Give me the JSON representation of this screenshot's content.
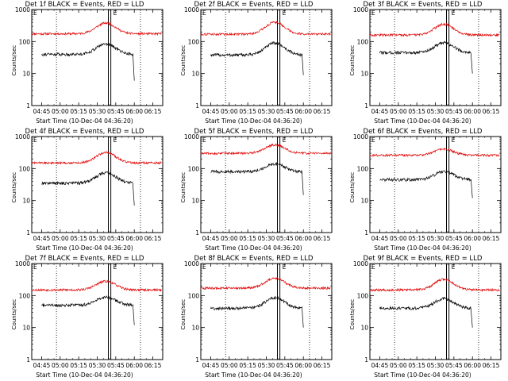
{
  "chart_data": {
    "type": "line",
    "yscale": "log",
    "ylim": [
      1,
      1000
    ],
    "y_ticks": [
      "1",
      "10",
      "100",
      "1000"
    ],
    "x_ticks": [
      "04:45",
      "05:00",
      "05:15",
      "05:30",
      "05:45",
      "06:00",
      "06:15"
    ],
    "x_tick_minutes": [
      0,
      15,
      30,
      45,
      60,
      75,
      90
    ],
    "xlim_minutes": [
      -8,
      98
    ],
    "ylabel": "Counts/sec",
    "xlabel": "Start Time (10-Dec-04 04:36:20)",
    "markers": {
      "dotted_at_min": [
        12,
        80
      ],
      "solid_at_min": [
        54,
        56
      ]
    },
    "flag_label": "E",
    "series_colors": {
      "events": "#000000",
      "lld": "#e00000"
    },
    "panels": [
      {
        "title": "Det 1f BLACK = Events, RED = LLD",
        "red": [
          175,
          380,
          180
        ],
        "black": [
          40,
          85,
          6
        ]
      },
      {
        "title": "Det 2f BLACK = Events, RED = LLD",
        "red": [
          170,
          400,
          170
        ],
        "black": [
          38,
          90,
          9
        ]
      },
      {
        "title": "Det 3f BLACK = Events, RED = LLD",
        "red": [
          160,
          350,
          150
        ],
        "black": [
          45,
          90,
          10
        ]
      },
      {
        "title": "Det 4f BLACK = Events, RED = LLD",
        "red": [
          150,
          320,
          140
        ],
        "black": [
          35,
          75,
          7
        ]
      },
      {
        "title": "Det 5f BLACK = Events, RED = LLD",
        "red": [
          300,
          550,
          280
        ],
        "black": [
          80,
          140,
          15
        ]
      },
      {
        "title": "Det 6f BLACK = Events, RED = LLD",
        "red": [
          260,
          400,
          230
        ],
        "black": [
          45,
          80,
          12
        ]
      },
      {
        "title": "Det 7f BLACK = Events, RED = LLD",
        "red": [
          150,
          280,
          140
        ],
        "black": [
          50,
          90,
          12
        ]
      },
      {
        "title": "Det 8f BLACK = Events, RED = LLD",
        "red": [
          170,
          350,
          160
        ],
        "black": [
          40,
          85,
          10
        ]
      },
      {
        "title": "Det 9f BLACK = Events, RED = LLD",
        "red": [
          150,
          320,
          140
        ],
        "black": [
          40,
          80,
          10
        ]
      }
    ]
  }
}
